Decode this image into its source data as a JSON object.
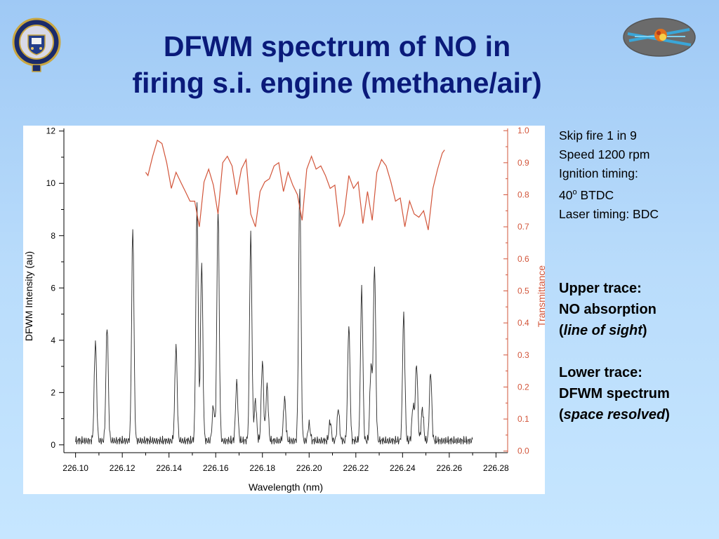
{
  "slide": {
    "title_line1": "DFWM spectrum of NO in",
    "title_line2": "firing s.i. engine (methane/air)",
    "logo_left_icon": "university-crest-icon",
    "logo_right_icon": "laser-beam-logo-icon"
  },
  "conditions": {
    "line1": "Skip fire 1 in 9",
    "line2": "Speed 1200 rpm",
    "line3": "Ignition timing:",
    "line4_num": "40",
    "line4_sup": "o",
    "line4_rest": " BTDC",
    "line5": "Laser timing: BDC"
  },
  "legend_notes": {
    "upper_title": "Upper trace:",
    "upper_desc": "NO absorption",
    "upper_paren_open": "(",
    "upper_note": "line of sight",
    "upper_paren_close": ")",
    "lower_title": "Lower trace:",
    "lower_desc": "DFWM spectrum",
    "lower_paren_open": "(",
    "lower_note": "space resolved",
    "lower_paren_close": ")"
  },
  "colors": {
    "transmittance": "#d2553a",
    "dfwm": "#2a2a2a",
    "title": "#0a1a7a"
  },
  "chart_data": {
    "type": "line",
    "xlabel": "Wavelength (nm)",
    "ylabel": "DFWM Intensity (au)",
    "y2label": "Transmittance",
    "xlim": [
      226.095,
      226.285
    ],
    "ylim": [
      -0.3,
      12.1
    ],
    "y2lim": [
      -0.005,
      1.007
    ],
    "x_ticks": [
      "226.10",
      "226.12",
      "226.14",
      "226.16",
      "226.18",
      "226.20",
      "226.22",
      "226.24",
      "226.26",
      "226.28"
    ],
    "y_ticks": [
      "0",
      "2",
      "4",
      "6",
      "8",
      "10",
      "12"
    ],
    "y2_ticks": [
      "0.0",
      "0.1",
      "0.2",
      "0.3",
      "0.4",
      "0.5",
      "0.6",
      "0.7",
      "0.8",
      "0.9",
      "1.0"
    ],
    "grid": false,
    "series": [
      {
        "axis": "left",
        "baseline": 0.15,
        "x_range": [
          226.1,
          226.27
        ],
        "peaks": [
          [
            226.1085,
            4.0
          ],
          [
            226.1135,
            4.6
          ],
          [
            226.1245,
            8.3
          ],
          [
            226.143,
            3.8
          ],
          [
            226.152,
            9.2
          ],
          [
            226.154,
            7.0
          ],
          [
            226.159,
            1.5
          ],
          [
            226.161,
            9.1
          ],
          [
            226.169,
            2.4
          ],
          [
            226.175,
            8.1
          ],
          [
            226.177,
            1.7
          ],
          [
            226.18,
            3.2
          ],
          [
            226.182,
            2.3
          ],
          [
            226.1895,
            1.8
          ],
          [
            226.196,
            9.9
          ],
          [
            226.2,
            0.8
          ],
          [
            226.209,
            0.9
          ],
          [
            226.2125,
            1.4
          ],
          [
            226.217,
            4.6
          ],
          [
            226.2225,
            6.0
          ],
          [
            226.2265,
            3.0
          ],
          [
            226.228,
            6.9
          ],
          [
            226.2405,
            5.0
          ],
          [
            226.2445,
            1.5
          ],
          [
            226.246,
            3.1
          ],
          [
            226.2485,
            1.4
          ],
          [
            226.252,
            2.8
          ],
          [
            226.271,
            0.55
          ]
        ]
      },
      {
        "axis": "right",
        "x": [
          226.13,
          226.131,
          226.133,
          226.135,
          226.137,
          226.139,
          226.141,
          226.143,
          226.145,
          226.147,
          226.149,
          226.151,
          226.153,
          226.155,
          226.157,
          226.159,
          226.161,
          226.163,
          226.165,
          226.167,
          226.169,
          226.171,
          226.173,
          226.175,
          226.177,
          226.179,
          226.181,
          226.183,
          226.185,
          226.187,
          226.189,
          226.191,
          226.193,
          226.195,
          226.197,
          226.199,
          226.201,
          226.203,
          226.205,
          226.207,
          226.209,
          226.211,
          226.213,
          226.215,
          226.217,
          226.219,
          226.221,
          226.223,
          226.225,
          226.227,
          226.229,
          226.231,
          226.233,
          226.235,
          226.237,
          226.239,
          226.241,
          226.243,
          226.245,
          226.247,
          226.249,
          226.251,
          226.253,
          226.255,
          226.257,
          226.258
        ],
        "y": [
          0.87,
          0.86,
          0.92,
          0.97,
          0.96,
          0.9,
          0.82,
          0.87,
          0.84,
          0.81,
          0.78,
          0.78,
          0.7,
          0.84,
          0.88,
          0.83,
          0.74,
          0.9,
          0.92,
          0.89,
          0.8,
          0.88,
          0.91,
          0.74,
          0.7,
          0.81,
          0.84,
          0.85,
          0.89,
          0.9,
          0.81,
          0.87,
          0.83,
          0.8,
          0.72,
          0.88,
          0.92,
          0.88,
          0.89,
          0.86,
          0.82,
          0.83,
          0.7,
          0.74,
          0.86,
          0.82,
          0.84,
          0.71,
          0.81,
          0.72,
          0.87,
          0.91,
          0.89,
          0.84,
          0.78,
          0.79,
          0.7,
          0.78,
          0.74,
          0.73,
          0.75,
          0.69,
          0.82,
          0.88,
          0.93,
          0.94
        ]
      }
    ]
  }
}
